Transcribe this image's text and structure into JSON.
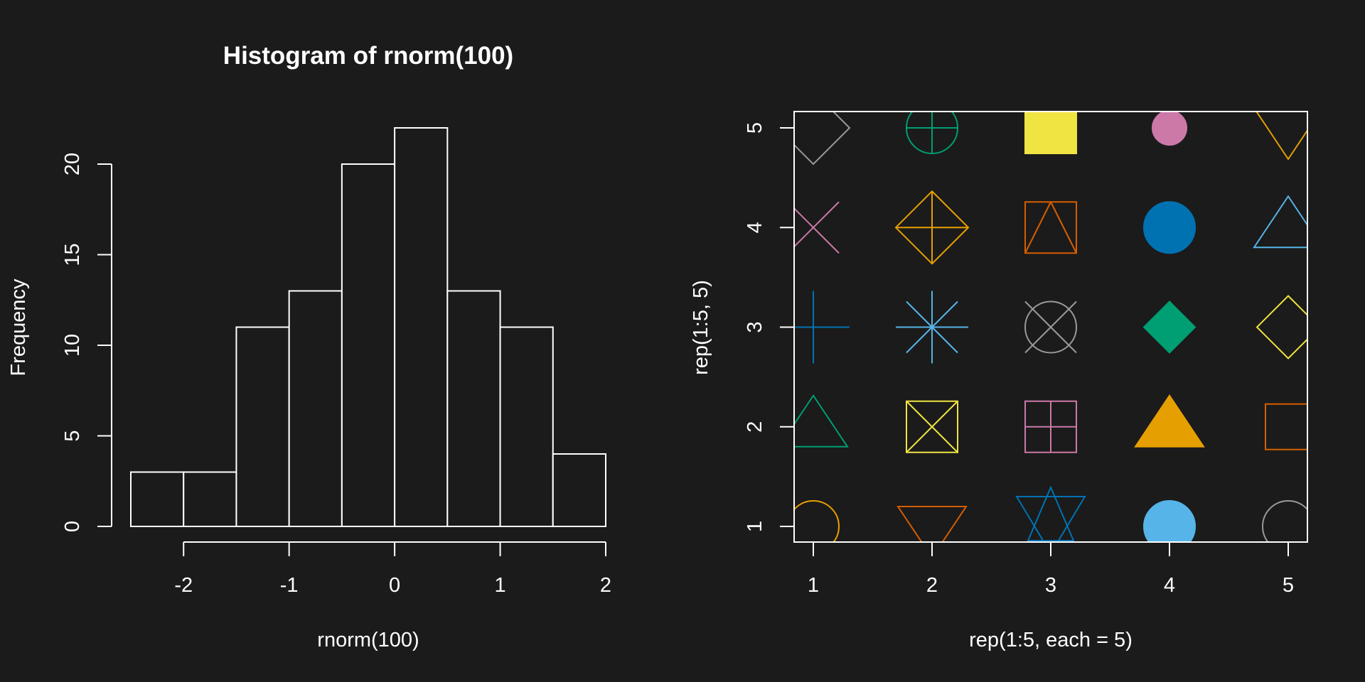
{
  "chart_data": [
    {
      "type": "bar",
      "title": "Histogram of rnorm(100)",
      "xlabel": "rnorm(100)",
      "ylabel": "Frequency",
      "bin_edges": [
        -2.5,
        -2,
        -1.5,
        -1,
        -0.5,
        0,
        0.5,
        1,
        1.5,
        2
      ],
      "values": [
        3,
        3,
        11,
        13,
        20,
        22,
        13,
        11,
        4
      ],
      "xticks": [
        -2,
        -1,
        0,
        1,
        2
      ],
      "yticks": [
        0,
        5,
        10,
        15,
        20
      ],
      "xlim": [
        -2.5,
        2
      ],
      "ylim": [
        0,
        22
      ],
      "grid": false
    },
    {
      "type": "scatter",
      "title": "",
      "xlabel": "rep(1:5, each = 5)",
      "ylabel": "rep(1:5, 5)",
      "xticks": [
        1,
        2,
        3,
        4,
        5
      ],
      "yticks": [
        1,
        2,
        3,
        4,
        5
      ],
      "xlim": [
        1,
        5
      ],
      "ylim": [
        1,
        5
      ],
      "grid": false,
      "points": [
        {
          "x": 1,
          "y": 1,
          "pch": 1,
          "color": "#E69F00"
        },
        {
          "x": 1,
          "y": 2,
          "pch": 2,
          "color": "#009E73"
        },
        {
          "x": 1,
          "y": 3,
          "pch": 3,
          "color": "#0072B2"
        },
        {
          "x": 1,
          "y": 4,
          "pch": 4,
          "color": "#CC79A7"
        },
        {
          "x": 1,
          "y": 5,
          "pch": 5,
          "color": "#999999"
        },
        {
          "x": 2,
          "y": 1,
          "pch": 6,
          "color": "#D55E00"
        },
        {
          "x": 2,
          "y": 2,
          "pch": 7,
          "color": "#F0E442"
        },
        {
          "x": 2,
          "y": 3,
          "pch": 8,
          "color": "#56B4E9"
        },
        {
          "x": 2,
          "y": 4,
          "pch": 9,
          "color": "#E69F00"
        },
        {
          "x": 2,
          "y": 5,
          "pch": 10,
          "color": "#009E73"
        },
        {
          "x": 3,
          "y": 1,
          "pch": 11,
          "color": "#0072B2"
        },
        {
          "x": 3,
          "y": 2,
          "pch": 12,
          "color": "#CC79A7"
        },
        {
          "x": 3,
          "y": 3,
          "pch": 13,
          "color": "#999999"
        },
        {
          "x": 3,
          "y": 4,
          "pch": 14,
          "color": "#D55E00"
        },
        {
          "x": 3,
          "y": 5,
          "pch": 15,
          "color": "#F0E442"
        },
        {
          "x": 4,
          "y": 1,
          "pch": 16,
          "color": "#56B4E9"
        },
        {
          "x": 4,
          "y": 2,
          "pch": 17,
          "color": "#E69F00"
        },
        {
          "x": 4,
          "y": 3,
          "pch": 18,
          "color": "#009E73"
        },
        {
          "x": 4,
          "y": 4,
          "pch": 19,
          "color": "#0072B2"
        },
        {
          "x": 4,
          "y": 5,
          "pch": 20,
          "color": "#CC79A7"
        },
        {
          "x": 5,
          "y": 1,
          "pch": 21,
          "color": "#999999"
        },
        {
          "x": 5,
          "y": 2,
          "pch": 22,
          "color": "#D55E00"
        },
        {
          "x": 5,
          "y": 3,
          "pch": 23,
          "color": "#F0E442"
        },
        {
          "x": 5,
          "y": 4,
          "pch": 24,
          "color": "#56B4E9"
        },
        {
          "x": 5,
          "y": 5,
          "pch": 25,
          "color": "#E69F00"
        }
      ]
    }
  ]
}
